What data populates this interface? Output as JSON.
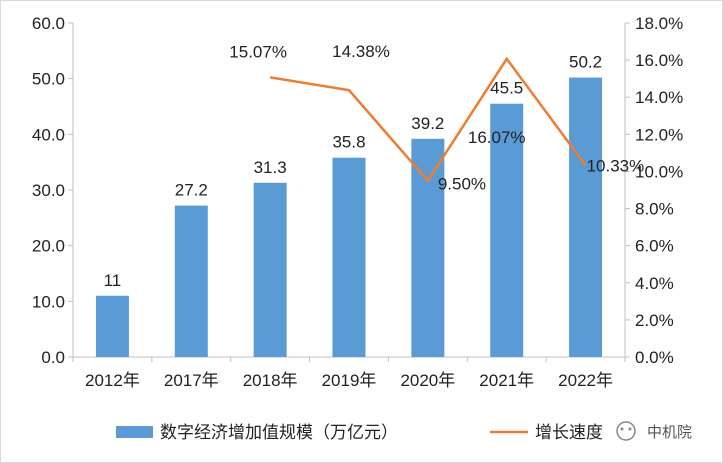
{
  "chart_data": {
    "type": "bar+line",
    "categories": [
      "2012年",
      "2017年",
      "2018年",
      "2019年",
      "2020年",
      "2021年",
      "2022年"
    ],
    "bar_series": {
      "name": "数字经济增加值规模（万亿元）",
      "values": [
        11,
        27.2,
        31.3,
        35.8,
        39.2,
        45.5,
        50.2
      ],
      "labels": [
        "11",
        "27.2",
        "31.3",
        "35.8",
        "39.2",
        "45.5",
        "50.2"
      ],
      "color": "#5b9bd5"
    },
    "line_series": {
      "name": "增长速度",
      "values": [
        null,
        null,
        15.07,
        14.38,
        9.5,
        16.07,
        10.33
      ],
      "labels": [
        "",
        "",
        "15.07%",
        "14.38%",
        "9.50%",
        "16.07%",
        "10.33%"
      ],
      "color": "#ed7d31"
    },
    "y_left": {
      "min": 0,
      "max": 60,
      "ticks": [
        "0.0",
        "10.0",
        "20.0",
        "30.0",
        "40.0",
        "50.0",
        "60.0"
      ]
    },
    "y_right": {
      "min": 0,
      "max": 18,
      "ticks": [
        "0.0%",
        "2.0%",
        "4.0%",
        "6.0%",
        "8.0%",
        "10.0%",
        "12.0%",
        "14.0%",
        "16.0%",
        "18.0%"
      ]
    },
    "grid": false,
    "legend": "bottom"
  },
  "watermark": {
    "text": "中机院"
  }
}
